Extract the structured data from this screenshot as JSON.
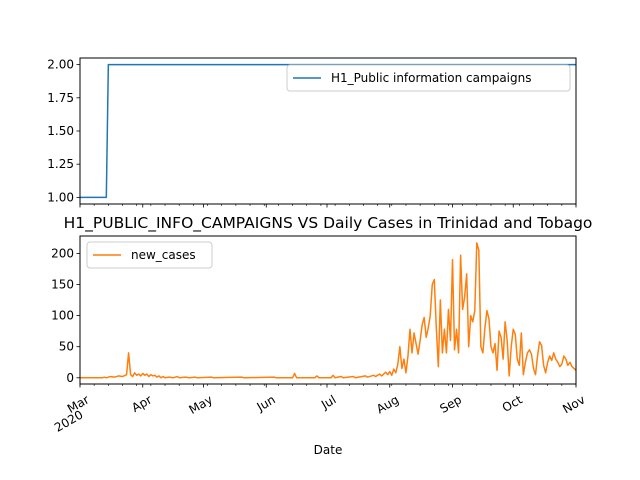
{
  "chart_data": [
    {
      "type": "line",
      "title": "",
      "xlabel": "",
      "ylabel": "",
      "ylim": [
        0.95,
        2.05
      ],
      "yticks": [
        "1.00",
        "1.25",
        "1.50",
        "1.75",
        "2.00"
      ],
      "xlim": [
        "2020-03-01",
        "2020-11-01"
      ],
      "grid": false,
      "legend_position": "upper right",
      "color": "#1f77b4",
      "series": [
        {
          "name": "H1_Public information campaigns",
          "points": [
            [
              "2020-03-01",
              1
            ],
            [
              "2020-03-14",
              1
            ],
            [
              "2020-03-15",
              2
            ],
            [
              "2020-11-01",
              2
            ]
          ]
        }
      ]
    },
    {
      "type": "line",
      "title": "H1_PUBLIC_INFO_CAMPAIGNS VS Daily Cases in Trinidad and Tobago",
      "xlabel": "Date",
      "ylabel": "",
      "ylim": [
        -10,
        228
      ],
      "yticks": [
        "0",
        "50",
        "100",
        "150",
        "200"
      ],
      "xlim": [
        "2020-03-01",
        "2020-11-01"
      ],
      "xticks": [
        {
          "date": "2020-03-01",
          "label": "Mar",
          "year": "2020"
        },
        {
          "date": "2020-04-01",
          "label": "Apr"
        },
        {
          "date": "2020-05-01",
          "label": "May"
        },
        {
          "date": "2020-06-01",
          "label": "Jun"
        },
        {
          "date": "2020-07-01",
          "label": "Jul"
        },
        {
          "date": "2020-08-01",
          "label": "Aug"
        },
        {
          "date": "2020-09-01",
          "label": "Sep"
        },
        {
          "date": "2020-10-01",
          "label": "Oct"
        },
        {
          "date": "2020-11-01",
          "label": "Nov"
        }
      ],
      "grid": false,
      "legend_position": "upper left",
      "color": "#ff7f0e",
      "series": [
        {
          "name": "new_cases",
          "points": [
            [
              "2020-03-01",
              0
            ],
            [
              "2020-03-12",
              0
            ],
            [
              "2020-03-13",
              1
            ],
            [
              "2020-03-14",
              0
            ],
            [
              "2020-03-16",
              2
            ],
            [
              "2020-03-18",
              1
            ],
            [
              "2020-03-20",
              3
            ],
            [
              "2020-03-22",
              2
            ],
            [
              "2020-03-24",
              5
            ],
            [
              "2020-03-25",
              40
            ],
            [
              "2020-03-26",
              5
            ],
            [
              "2020-03-27",
              2
            ],
            [
              "2020-03-28",
              8
            ],
            [
              "2020-03-29",
              4
            ],
            [
              "2020-03-30",
              6
            ],
            [
              "2020-03-31",
              3
            ],
            [
              "2020-04-01",
              7
            ],
            [
              "2020-04-02",
              4
            ],
            [
              "2020-04-03",
              6
            ],
            [
              "2020-04-04",
              2
            ],
            [
              "2020-04-05",
              5
            ],
            [
              "2020-04-06",
              3
            ],
            [
              "2020-04-07",
              4
            ],
            [
              "2020-04-08",
              1
            ],
            [
              "2020-04-09",
              3
            ],
            [
              "2020-04-10",
              0
            ],
            [
              "2020-04-11",
              2
            ],
            [
              "2020-04-12",
              0
            ],
            [
              "2020-04-14",
              1
            ],
            [
              "2020-04-16",
              0
            ],
            [
              "2020-04-18",
              2
            ],
            [
              "2020-04-19",
              0
            ],
            [
              "2020-04-22",
              1
            ],
            [
              "2020-04-24",
              0
            ],
            [
              "2020-04-27",
              1
            ],
            [
              "2020-04-28",
              0
            ],
            [
              "2020-05-05",
              1
            ],
            [
              "2020-05-06",
              0
            ],
            [
              "2020-05-20",
              1
            ],
            [
              "2020-05-21",
              0
            ],
            [
              "2020-06-05",
              1
            ],
            [
              "2020-06-06",
              0
            ],
            [
              "2020-06-14",
              0
            ],
            [
              "2020-06-15",
              7
            ],
            [
              "2020-06-16",
              0
            ],
            [
              "2020-06-25",
              0
            ],
            [
              "2020-06-26",
              3
            ],
            [
              "2020-06-27",
              0
            ],
            [
              "2020-07-03",
              0
            ],
            [
              "2020-07-04",
              4
            ],
            [
              "2020-07-05",
              0
            ],
            [
              "2020-07-08",
              2
            ],
            [
              "2020-07-09",
              0
            ],
            [
              "2020-07-14",
              2
            ],
            [
              "2020-07-15",
              0
            ],
            [
              "2020-07-20",
              3
            ],
            [
              "2020-07-21",
              1
            ],
            [
              "2020-07-24",
              4
            ],
            [
              "2020-07-25",
              2
            ],
            [
              "2020-07-27",
              6
            ],
            [
              "2020-07-28",
              3
            ],
            [
              "2020-07-30",
              9
            ],
            [
              "2020-07-31",
              5
            ],
            [
              "2020-08-01",
              10
            ],
            [
              "2020-08-02",
              4
            ],
            [
              "2020-08-03",
              14
            ],
            [
              "2020-08-04",
              8
            ],
            [
              "2020-08-05",
              22
            ],
            [
              "2020-08-06",
              50
            ],
            [
              "2020-08-07",
              15
            ],
            [
              "2020-08-08",
              30
            ],
            [
              "2020-08-09",
              8
            ],
            [
              "2020-08-10",
              35
            ],
            [
              "2020-08-11",
              78
            ],
            [
              "2020-08-12",
              40
            ],
            [
              "2020-08-13",
              72
            ],
            [
              "2020-08-14",
              55
            ],
            [
              "2020-08-15",
              38
            ],
            [
              "2020-08-16",
              60
            ],
            [
              "2020-08-17",
              85
            ],
            [
              "2020-08-18",
              97
            ],
            [
              "2020-08-19",
              65
            ],
            [
              "2020-08-20",
              80
            ],
            [
              "2020-08-21",
              100
            ],
            [
              "2020-08-22",
              150
            ],
            [
              "2020-08-23",
              158
            ],
            [
              "2020-08-24",
              80
            ],
            [
              "2020-08-25",
              18
            ],
            [
              "2020-08-26",
              125
            ],
            [
              "2020-08-27",
              40
            ],
            [
              "2020-08-28",
              78
            ],
            [
              "2020-08-29",
              40
            ],
            [
              "2020-08-30",
              110
            ],
            [
              "2020-08-31",
              60
            ],
            [
              "2020-09-01",
              190
            ],
            [
              "2020-09-02",
              45
            ],
            [
              "2020-09-03",
              78
            ],
            [
              "2020-09-04",
              40
            ],
            [
              "2020-09-05",
              197
            ],
            [
              "2020-09-06",
              110
            ],
            [
              "2020-09-07",
              130
            ],
            [
              "2020-09-08",
              167
            ],
            [
              "2020-09-09",
              50
            ],
            [
              "2020-09-10",
              100
            ],
            [
              "2020-09-11",
              90
            ],
            [
              "2020-09-12",
              108
            ],
            [
              "2020-09-13",
              217
            ],
            [
              "2020-09-14",
              205
            ],
            [
              "2020-09-15",
              50
            ],
            [
              "2020-09-16",
              40
            ],
            [
              "2020-09-17",
              80
            ],
            [
              "2020-09-18",
              108
            ],
            [
              "2020-09-19",
              95
            ],
            [
              "2020-09-20",
              50
            ],
            [
              "2020-09-21",
              40
            ],
            [
              "2020-09-22",
              55
            ],
            [
              "2020-09-23",
              12
            ],
            [
              "2020-09-24",
              75
            ],
            [
              "2020-09-25",
              65
            ],
            [
              "2020-09-26",
              30
            ],
            [
              "2020-09-27",
              90
            ],
            [
              "2020-09-28",
              60
            ],
            [
              "2020-09-29",
              3
            ],
            [
              "2020-09-30",
              50
            ],
            [
              "2020-10-01",
              78
            ],
            [
              "2020-10-02",
              70
            ],
            [
              "2020-10-03",
              30
            ],
            [
              "2020-10-04",
              20
            ],
            [
              "2020-10-05",
              72
            ],
            [
              "2020-10-06",
              5
            ],
            [
              "2020-10-07",
              25
            ],
            [
              "2020-10-08",
              40
            ],
            [
              "2020-10-09",
              45
            ],
            [
              "2020-10-10",
              38
            ],
            [
              "2020-10-11",
              15
            ],
            [
              "2020-10-12",
              5
            ],
            [
              "2020-10-13",
              35
            ],
            [
              "2020-10-14",
              58
            ],
            [
              "2020-10-15",
              52
            ],
            [
              "2020-10-16",
              20
            ],
            [
              "2020-10-17",
              8
            ],
            [
              "2020-10-18",
              25
            ],
            [
              "2020-10-19",
              35
            ],
            [
              "2020-10-20",
              28
            ],
            [
              "2020-10-21",
              40
            ],
            [
              "2020-10-22",
              30
            ],
            [
              "2020-10-23",
              25
            ],
            [
              "2020-10-24",
              18
            ],
            [
              "2020-10-25",
              22
            ],
            [
              "2020-10-26",
              35
            ],
            [
              "2020-10-27",
              30
            ],
            [
              "2020-10-28",
              20
            ],
            [
              "2020-10-29",
              25
            ],
            [
              "2020-10-30",
              18
            ],
            [
              "2020-10-31",
              15
            ],
            [
              "2020-11-01",
              12
            ]
          ]
        }
      ]
    }
  ]
}
